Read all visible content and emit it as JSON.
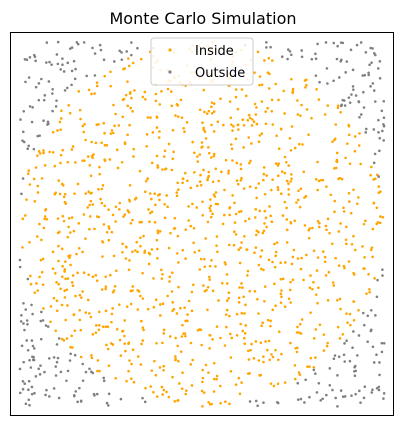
{
  "chart_data": {
    "type": "scatter",
    "title": "Monte Carlo Simulation",
    "xlabel": "",
    "ylabel": "",
    "xlim": [
      -1.05,
      1.05
    ],
    "ylim": [
      -1.05,
      1.05
    ],
    "grid": false,
    "axis_ticks": false,
    "legend_position": "upper center",
    "point_count": 1500,
    "circle_radius": 1,
    "series": [
      {
        "name": "Inside",
        "color": "#ffa500",
        "rule": "x^2 + y^2 <= 1"
      },
      {
        "name": "Outside",
        "color": "#808080",
        "rule": "x^2 + y^2 > 1"
      }
    ]
  }
}
